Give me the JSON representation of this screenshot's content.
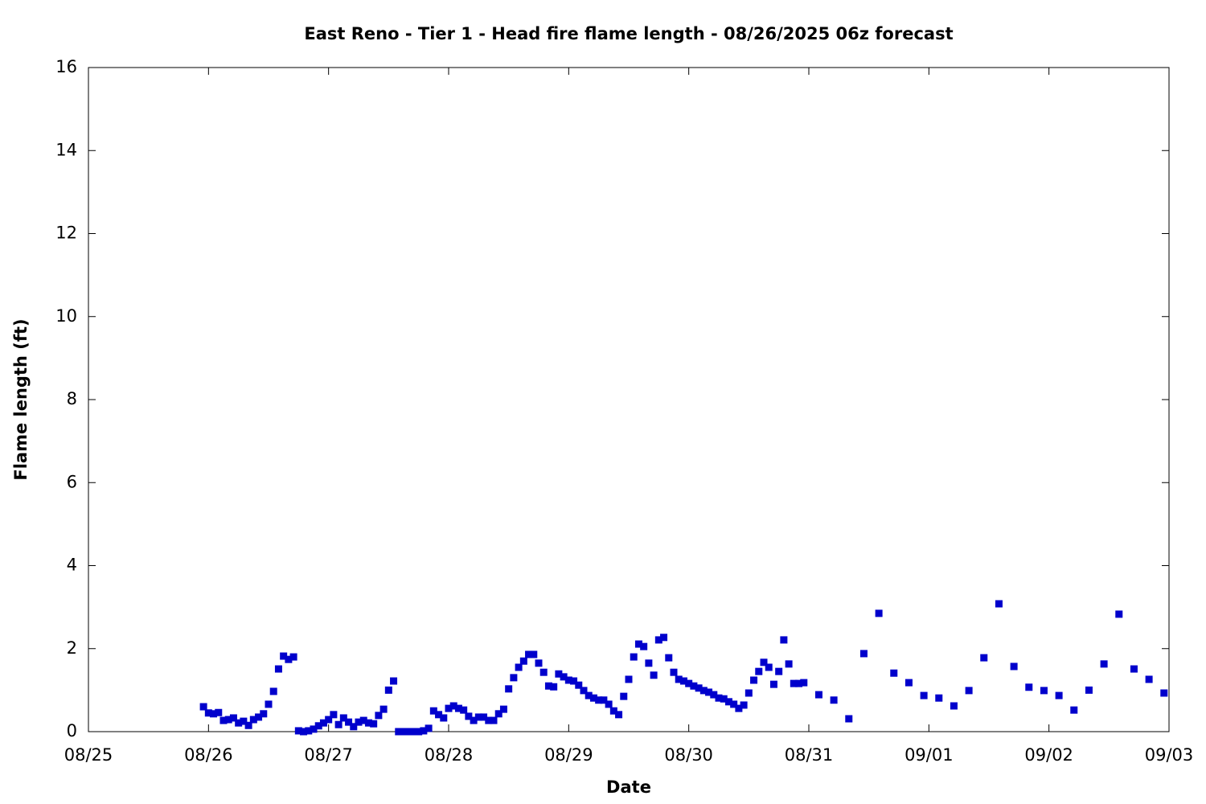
{
  "chart_data": {
    "type": "scatter",
    "title": "East Reno - Tier 1 - Head fire flame length - 08/26/2025 06z forecast",
    "x_label": "Date",
    "y_label": "Flame length (ft)",
    "xlim": [
      0,
      216
    ],
    "xticks": [
      {
        "value": 0,
        "label": "08/25"
      },
      {
        "value": 24,
        "label": "08/26"
      },
      {
        "value": 48,
        "label": "08/27"
      },
      {
        "value": 72,
        "label": "08/28"
      },
      {
        "value": 96,
        "label": "08/29"
      },
      {
        "value": 120,
        "label": "08/30"
      },
      {
        "value": 144,
        "label": "08/31"
      },
      {
        "value": 168,
        "label": "09/01"
      },
      {
        "value": 192,
        "label": "09/02"
      },
      {
        "value": 216,
        "label": "09/03"
      }
    ],
    "ylim": [
      0,
      16
    ],
    "yticks": [
      0,
      2,
      4,
      6,
      8,
      10,
      12,
      14,
      16
    ],
    "color": "#0000cc",
    "x": [
      23,
      24,
      25,
      26,
      27,
      28,
      29,
      30,
      31,
      32,
      33,
      34,
      35,
      36,
      37,
      38,
      39,
      40,
      41,
      42,
      43,
      44,
      45,
      46,
      47,
      48,
      49,
      50,
      51,
      52,
      53,
      54,
      55,
      56,
      57,
      58,
      59,
      60,
      61,
      62,
      63,
      64,
      65,
      66,
      67,
      68,
      69,
      70,
      71,
      72,
      73,
      74,
      75,
      76,
      77,
      78,
      79,
      80,
      81,
      82,
      83,
      84,
      85,
      86,
      87,
      88,
      89,
      90,
      91,
      92,
      93,
      94,
      95,
      96,
      97,
      98,
      99,
      100,
      101,
      102,
      103,
      104,
      105,
      106,
      107,
      108,
      109,
      110,
      111,
      112,
      113,
      114,
      115,
      116,
      117,
      118,
      119,
      120,
      121,
      122,
      123,
      124,
      125,
      126,
      127,
      128,
      129,
      130,
      131,
      132,
      133,
      134,
      135,
      136,
      137,
      138,
      139,
      140,
      141,
      142,
      143,
      146,
      149,
      152,
      155,
      158,
      161,
      164,
      167,
      170,
      173,
      176,
      179,
      182,
      185,
      188,
      191,
      194,
      197,
      200,
      203,
      206,
      209,
      212,
      215
    ],
    "values": [
      0.6,
      0.45,
      0.43,
      0.46,
      0.27,
      0.29,
      0.33,
      0.21,
      0.25,
      0.15,
      0.29,
      0.35,
      0.43,
      0.66,
      0.97,
      1.51,
      1.82,
      1.74,
      1.8,
      0.02,
      0,
      0.02,
      0.06,
      0.14,
      0.21,
      0.29,
      0.41,
      0.17,
      0.33,
      0.23,
      0.12,
      0.23,
      0.27,
      0.21,
      0.19,
      0.39,
      0.54,
      1,
      1.22,
      0,
      0,
      0,
      0,
      0,
      0.02,
      0.08,
      0.5,
      0.41,
      0.33,
      0.56,
      0.62,
      0.56,
      0.52,
      0.37,
      0.27,
      0.35,
      0.35,
      0.27,
      0.27,
      0.43,
      0.54,
      1.03,
      1.3,
      1.55,
      1.7,
      1.86,
      1.86,
      1.65,
      1.43,
      1.1,
      1.08,
      1.39,
      1.32,
      1.24,
      1.22,
      1.12,
      0.99,
      0.87,
      0.81,
      0.76,
      0.76,
      0.66,
      0.5,
      0.41,
      0.85,
      1.26,
      1.8,
      2.11,
      2.05,
      1.65,
      1.36,
      2.21,
      2.27,
      1.78,
      1.43,
      1.26,
      1.22,
      1.16,
      1.1,
      1.05,
      0.99,
      0.95,
      0.89,
      0.81,
      0.79,
      0.72,
      0.66,
      0.56,
      0.64,
      0.93,
      1.24,
      1.45,
      1.67,
      1.55,
      1.14,
      1.45,
      2.21,
      1.63,
      1.16,
      1.16,
      1.18,
      0.89,
      0.76,
      0.31,
      1.88,
      2.85,
      1.41,
      1.18,
      0.87,
      0.81,
      0.62,
      0.99,
      1.78,
      3.08,
      1.57,
      1.07,
      0.99,
      0.87,
      0.52,
      1,
      1.63,
      2.83,
      1.51,
      1.26,
      0.93
    ]
  }
}
